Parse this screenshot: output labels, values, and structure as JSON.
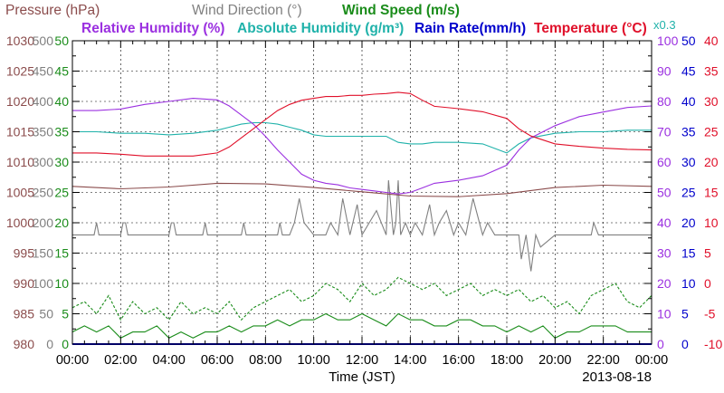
{
  "chart_data": {
    "type": "line",
    "date": "2013-08-18",
    "xlabel": "Time (JST)",
    "x_ticks": [
      "00:00",
      "02:00",
      "04:00",
      "06:00",
      "08:00",
      "10:00",
      "12:00",
      "14:00",
      "16:00",
      "18:00",
      "20:00",
      "22:00",
      "00:00"
    ],
    "x_range_hours": [
      0,
      24
    ],
    "grid": true,
    "legend": {
      "row1": [
        {
          "text": "Pressure (hPa)",
          "color": "#8b4c4c"
        },
        {
          "text": "Wind Direction (°)",
          "color": "#808080"
        },
        {
          "text": "Wind Speed (m/s)",
          "color": "#1a8c1a"
        }
      ],
      "row2": [
        {
          "text": "Relative Humidity (%)",
          "color": "#9b30e0"
        },
        {
          "text": "Absolute Humidity (g/m³)",
          "color": "#20b2aa"
        },
        {
          "text": "Rain Rate(mm/h)",
          "color": "#0000cc"
        },
        {
          "text": "Temperature (°C)",
          "color": "#e0102a"
        }
      ],
      "multiplier": {
        "text": "x0.3",
        "color": "#20b2aa"
      }
    },
    "axes": {
      "pressure": {
        "color": "#8b4c4c",
        "range": [
          980,
          1030
        ],
        "ticks": [
          "1030",
          "1025",
          "1020",
          "1015",
          "1010",
          "1005",
          "1000",
          "995",
          "990",
          "985",
          "980"
        ]
      },
      "wind_direction": {
        "color": "#808080",
        "range": [
          0,
          500
        ],
        "ticks": [
          "500",
          "450",
          "400",
          "350",
          "300",
          "250",
          "200",
          "150",
          "100",
          "50",
          "0"
        ]
      },
      "wind_speed": {
        "color": "#1a8c1a",
        "range": [
          0,
          50
        ],
        "ticks": [
          "50",
          "45",
          "40",
          "35",
          "30",
          "25",
          "20",
          "15",
          "10",
          "5",
          "0"
        ]
      },
      "humidity": {
        "color": "#9b30e0",
        "range": [
          0,
          100
        ],
        "ticks": [
          "100",
          "90",
          "80",
          "70",
          "60",
          "50",
          "40",
          "30",
          "20",
          "10",
          "0"
        ]
      },
      "rain_rate": {
        "color": "#0000cc",
        "range": [
          0,
          50
        ],
        "ticks": [
          "50",
          "45",
          "40",
          "35",
          "30",
          "25",
          "20",
          "15",
          "10",
          "5",
          "0"
        ]
      },
      "temperature": {
        "color": "#e0102a",
        "range": [
          -10,
          40
        ],
        "ticks": [
          "40",
          "35",
          "30",
          "25",
          "20",
          "15",
          "10",
          "5",
          "0",
          "-5",
          "-10"
        ]
      }
    },
    "series": [
      {
        "name": "Temperature (°C)",
        "axis": "temperature",
        "color": "#e0102a",
        "x": [
          0,
          1,
          2,
          3,
          4,
          5,
          6,
          6.5,
          7,
          7.5,
          8,
          8.5,
          9,
          9.5,
          10,
          10.5,
          11,
          11.5,
          12,
          12.5,
          13,
          13.5,
          14,
          14.5,
          15,
          16,
          17,
          18,
          18.5,
          19,
          20,
          21,
          22,
          23,
          24
        ],
        "y": [
          21.5,
          21.5,
          21.3,
          21,
          21,
          21,
          21.5,
          22.5,
          24,
          25.5,
          27,
          28.5,
          29.5,
          30.2,
          30.5,
          30.8,
          30.8,
          31,
          31,
          31.2,
          31.3,
          31.5,
          31.3,
          30.2,
          29.2,
          28.8,
          28.3,
          27.2,
          25.5,
          24.3,
          23,
          22.6,
          22.3,
          22.1,
          22
        ]
      },
      {
        "name": "Relative Humidity (%)",
        "axis": "humidity",
        "color": "#9b30e0",
        "x": [
          0,
          1,
          2,
          3,
          4,
          5,
          6,
          6.5,
          7,
          7.5,
          8,
          8.5,
          9,
          9.5,
          10,
          10.5,
          11,
          11.5,
          12,
          12.5,
          13,
          13.5,
          14,
          14.5,
          15,
          16,
          17,
          18,
          18.5,
          19,
          20,
          21,
          22,
          23,
          24
        ],
        "y": [
          77,
          77,
          77.5,
          79,
          80,
          81,
          80.5,
          78.5,
          75.5,
          72.5,
          68.5,
          64,
          60,
          56,
          54,
          53,
          52.5,
          51.5,
          51,
          50.5,
          50,
          49.5,
          50,
          51.5,
          53,
          54,
          55.5,
          59,
          64,
          68,
          72,
          75,
          76.5,
          78,
          78.5
        ]
      },
      {
        "name": "Absolute Humidity (g/m³)",
        "axis": "humidity",
        "color": "#20b2aa",
        "x": [
          0,
          1,
          2,
          3,
          4,
          5,
          6,
          6.5,
          7,
          7.5,
          8,
          8.5,
          9,
          9.5,
          10,
          10.5,
          11,
          11.5,
          12,
          12.5,
          13,
          13.5,
          14,
          14.5,
          15,
          16,
          17,
          18,
          18.5,
          19,
          20,
          21,
          22,
          23,
          24
        ],
        "y": [
          70,
          70,
          69.5,
          69.5,
          69,
          69.5,
          70.5,
          71.5,
          72.5,
          73,
          73,
          72.5,
          71.5,
          70.5,
          69,
          68.5,
          68.5,
          68.5,
          68.5,
          68.5,
          68.5,
          66.5,
          66,
          66,
          66.5,
          66.5,
          66,
          63,
          66,
          68,
          69.5,
          70,
          70,
          70.5,
          70.5
        ]
      },
      {
        "name": "Pressure (hPa)",
        "axis": "pressure",
        "color": "#8b4c4c",
        "x": [
          0,
          2,
          4,
          6,
          8,
          10,
          12,
          14,
          16,
          18,
          20,
          22,
          24
        ],
        "y": [
          1006,
          1005.6,
          1005.9,
          1006.5,
          1006.4,
          1005.8,
          1005.1,
          1004.4,
          1004.3,
          1004.8,
          1005.8,
          1006.2,
          1006
        ]
      },
      {
        "name": "Wind Direction (°)",
        "axis": "wind_direction",
        "color": "#808080",
        "x": [
          0,
          0.5,
          0.9,
          1,
          1.1,
          1.5,
          2,
          2.1,
          2.2,
          2.3,
          3,
          4,
          4.1,
          4.2,
          4.3,
          5,
          5.4,
          5.5,
          5.6,
          6,
          6.5,
          7,
          7.1,
          7.2,
          8,
          8.5,
          8.6,
          8.7,
          9,
          9.2,
          9.4,
          9.6,
          10,
          10.5,
          10.7,
          11,
          11.2,
          11.5,
          11.8,
          12,
          12.3,
          12.6,
          13,
          13.1,
          13.3,
          13.4,
          13.5,
          13.6,
          13.8,
          14,
          14.2,
          14.5,
          14.8,
          15,
          15.2,
          15.5,
          15.8,
          16,
          16.3,
          16.6,
          17,
          17.2,
          17.5,
          17.8,
          18,
          18.5,
          18.6,
          18.8,
          19,
          19.2,
          19.4,
          20,
          21,
          21.5,
          21.6,
          21.8,
          22,
          23,
          24
        ],
        "y": [
          180,
          180,
          180,
          200,
          180,
          180,
          180,
          200,
          200,
          180,
          180,
          180,
          200,
          200,
          180,
          180,
          180,
          200,
          180,
          180,
          180,
          180,
          200,
          180,
          180,
          180,
          200,
          180,
          180,
          200,
          240,
          200,
          180,
          180,
          200,
          180,
          240,
          180,
          230,
          180,
          200,
          220,
          180,
          270,
          180,
          200,
          270,
          180,
          200,
          180,
          200,
          180,
          230,
          180,
          200,
          220,
          180,
          200,
          180,
          240,
          180,
          200,
          180,
          180,
          180,
          180,
          140,
          180,
          120,
          180,
          160,
          180,
          180,
          180,
          200,
          180,
          180,
          180,
          180
        ]
      },
      {
        "name": "Wind Speed (m/s) gust",
        "axis": "wind_speed",
        "color": "#1a8c1a",
        "style": "dashed",
        "x": [
          0,
          0.5,
          1,
          1.5,
          2,
          2.5,
          3,
          3.5,
          4,
          4.5,
          5,
          5.5,
          6,
          6.5,
          7,
          7.5,
          8,
          8.5,
          9,
          9.5,
          10,
          10.5,
          11,
          11.5,
          12,
          12.5,
          13,
          13.5,
          14,
          14.5,
          15,
          15.5,
          16,
          16.5,
          17,
          17.5,
          18,
          18.5,
          19,
          19.5,
          20,
          20.5,
          21,
          21.5,
          22,
          22.5,
          23,
          23.5,
          24
        ],
        "y": [
          6,
          7,
          5,
          8,
          4,
          7,
          5,
          6,
          4,
          7,
          5,
          6,
          5,
          7,
          4,
          6,
          7,
          8,
          9,
          7,
          8,
          10,
          9,
          7,
          10,
          8,
          9,
          11,
          10,
          9,
          10,
          8,
          9,
          10,
          8,
          9,
          8,
          9,
          7,
          8,
          6,
          7,
          5,
          8,
          9,
          10,
          7,
          6,
          8
        ]
      },
      {
        "name": "Wind Speed (m/s)",
        "axis": "wind_speed",
        "color": "#1a8c1a",
        "x": [
          0,
          0.5,
          1,
          1.5,
          2,
          2.5,
          3,
          3.5,
          4,
          4.5,
          5,
          5.5,
          6,
          6.5,
          7,
          7.5,
          8,
          8.5,
          9,
          9.5,
          10,
          10.5,
          11,
          11.5,
          12,
          12.5,
          13,
          13.5,
          14,
          14.5,
          15,
          15.5,
          16,
          16.5,
          17,
          17.5,
          18,
          18.5,
          19,
          19.5,
          20,
          20.5,
          21,
          21.5,
          22,
          22.5,
          23,
          23.5,
          24
        ],
        "y": [
          2,
          3,
          2,
          3,
          1,
          2,
          2,
          3,
          1,
          2,
          1,
          2,
          2,
          3,
          2,
          3,
          3,
          4,
          3,
          4,
          4,
          5,
          4,
          4,
          5,
          4,
          3,
          5,
          4,
          4,
          3,
          3,
          4,
          4,
          3,
          3,
          2,
          3,
          2,
          3,
          1,
          2,
          2,
          3,
          3,
          3,
          2,
          2,
          2
        ]
      },
      {
        "name": "Rain Rate(mm/h)",
        "axis": "rain_rate",
        "color": "#0000cc",
        "x": [
          0,
          24
        ],
        "y": [
          0,
          0
        ]
      }
    ]
  }
}
